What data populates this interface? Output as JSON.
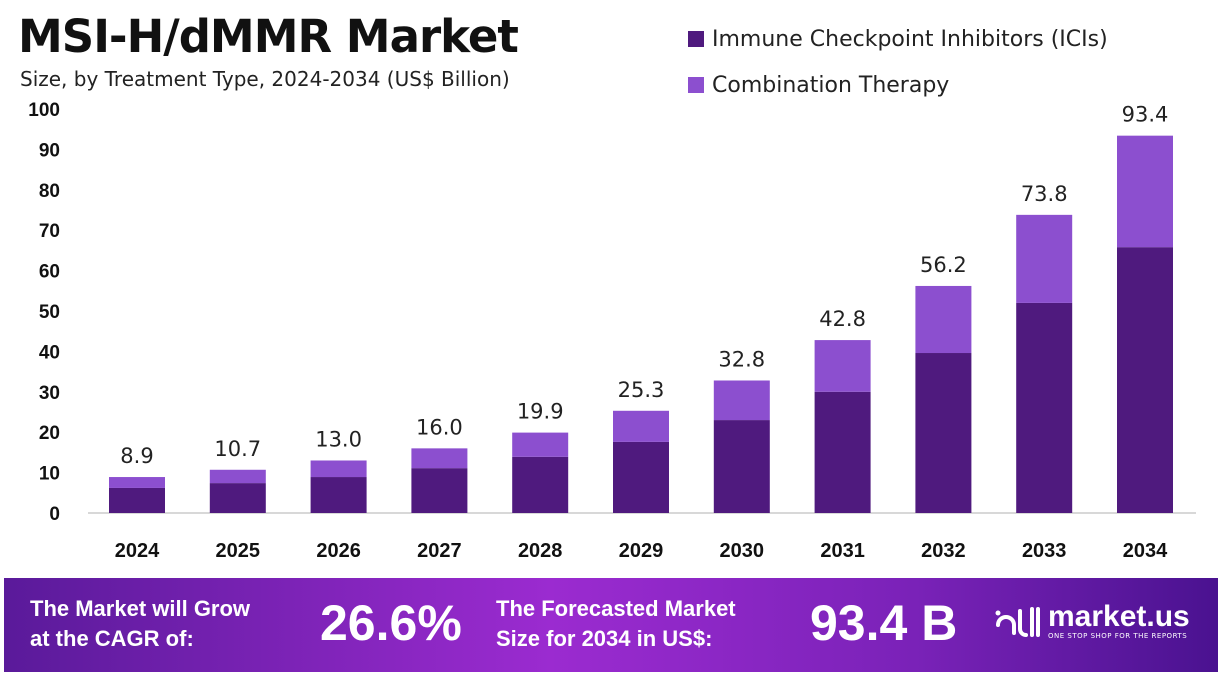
{
  "colors": {
    "ici": "#4f1a7e",
    "combination": "#8c4fcf",
    "footer_accent": "#9b2bd0"
  },
  "chart_data": {
    "type": "bar",
    "stacked": true,
    "title": "MSI-H/dMMR Market",
    "subtitle": "Size, by Treatment Type, 2024-2034 (US$ Billion)",
    "xlabel": "",
    "ylabel": "",
    "ylim": [
      0,
      100
    ],
    "yticks": [
      "0",
      "10",
      "20",
      "30",
      "40",
      "50",
      "60",
      "70",
      "80",
      "90",
      "100"
    ],
    "grid": false,
    "legend_position": "top-right",
    "categories": [
      "2024",
      "2025",
      "2026",
      "2027",
      "2028",
      "2029",
      "2030",
      "2031",
      "2032",
      "2033",
      "2034"
    ],
    "series": [
      {
        "name": "Immune Checkpoint Inhibitors (ICIs)",
        "values": [
          6.2,
          7.4,
          8.9,
          11.1,
          13.9,
          17.6,
          23.0,
          30.0,
          39.6,
          52.0,
          65.8
        ]
      },
      {
        "name": "Combination Therapy",
        "values": [
          2.7,
          3.3,
          4.1,
          4.9,
          6.0,
          7.7,
          9.8,
          12.8,
          16.6,
          21.8,
          27.6
        ]
      }
    ],
    "totals": [
      "8.9",
      "10.7",
      "13.0",
      "16.0",
      "19.9",
      "25.3",
      "32.8",
      "42.8",
      "56.2",
      "73.8",
      "93.4"
    ]
  },
  "footer": {
    "cagr_label_line1": "The Market will Grow",
    "cagr_label_line2": "at the CAGR of:",
    "cagr_value": "26.6%",
    "forecast_label_line1": "The Forecasted Market",
    "forecast_label_line2": "Size for 2034 in US$:",
    "forecast_value": "93.4 B",
    "logo_text": "market.us",
    "logo_tagline": "ONE STOP SHOP FOR THE REPORTS"
  }
}
